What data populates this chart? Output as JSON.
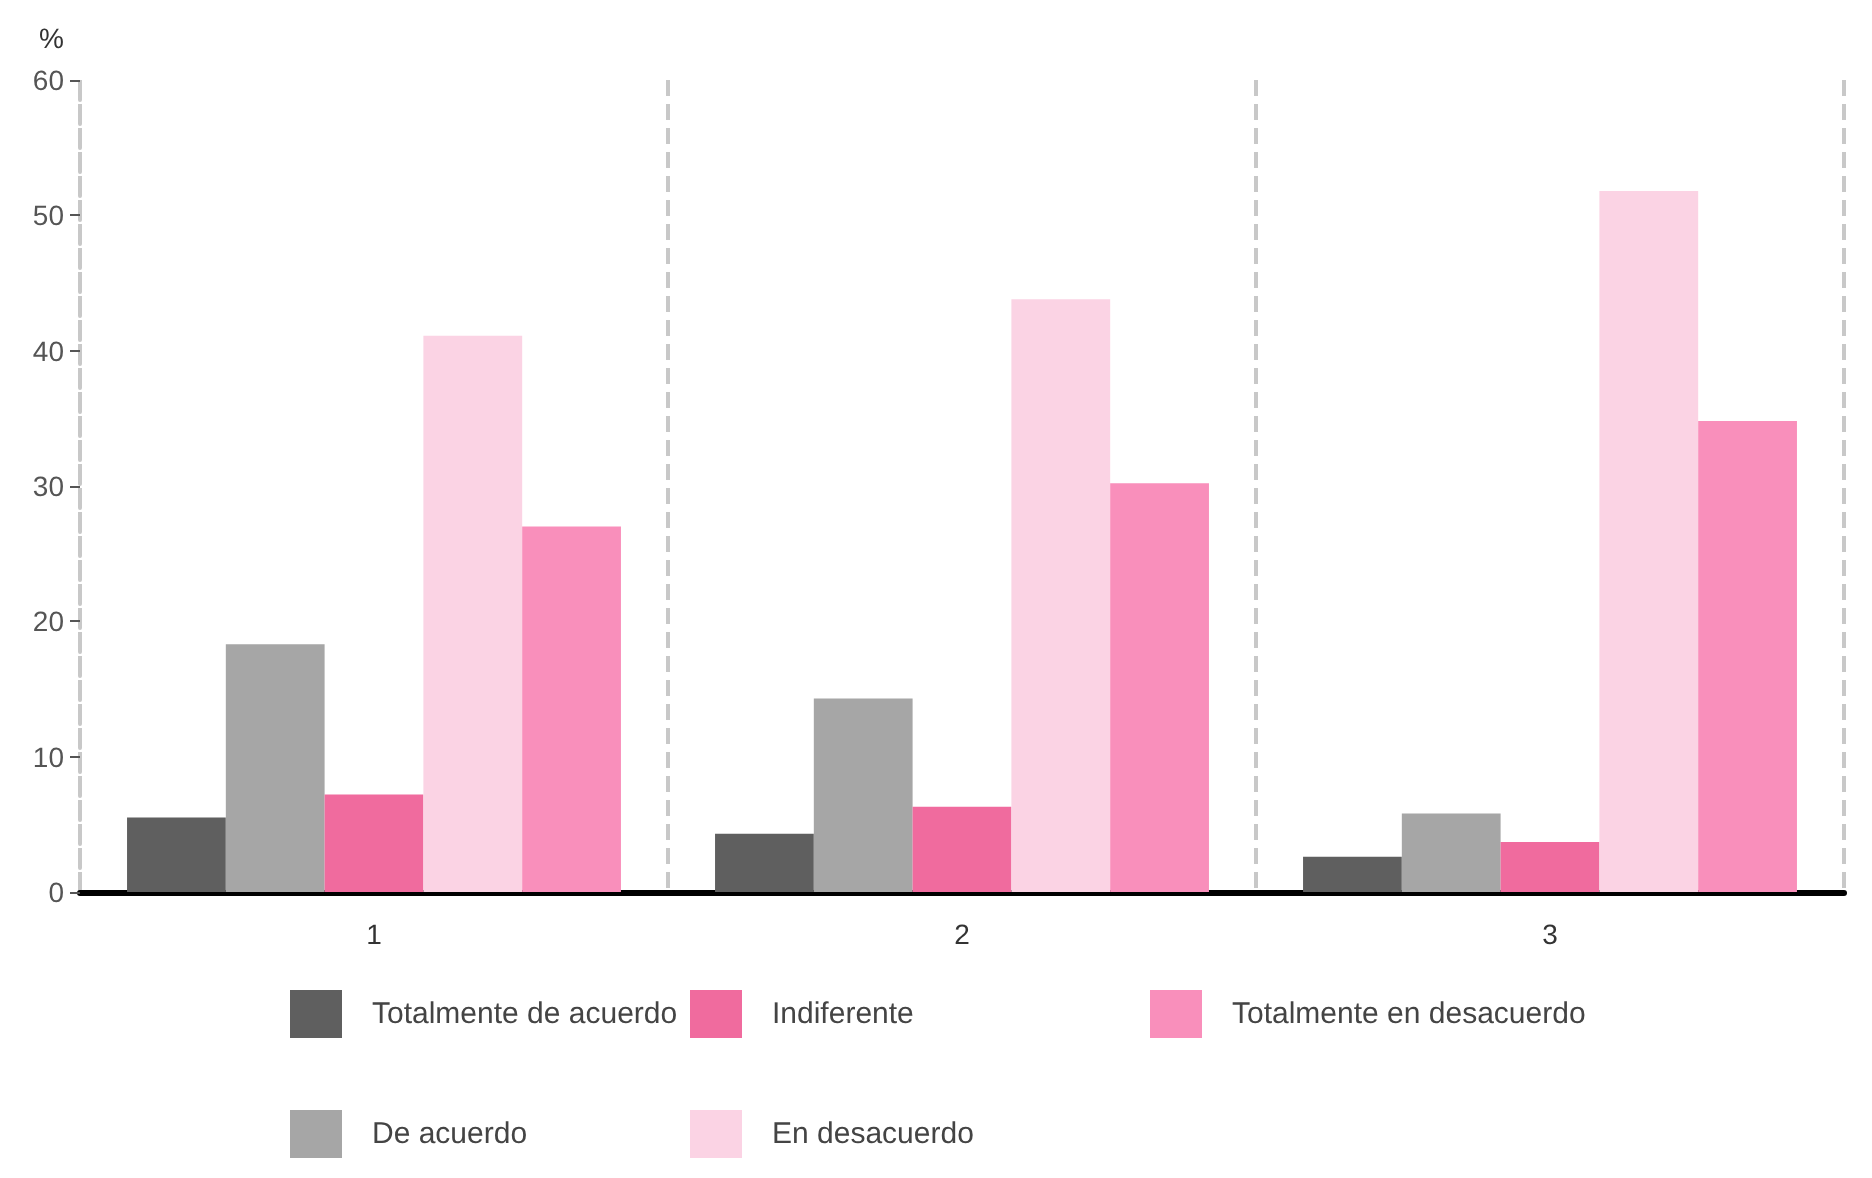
{
  "chart_data": {
    "type": "bar",
    "ylabel": "%",
    "categories": [
      "1",
      "2",
      "3"
    ],
    "series": [
      {
        "name": "Totalmente de acuerdo",
        "color": "#5f5f5f",
        "values": [
          5.5,
          4.3,
          2.6
        ]
      },
      {
        "name": "De acuerdo",
        "color": "#a6a6a6",
        "values": [
          18.3,
          14.3,
          5.8
        ]
      },
      {
        "name": "Indiferente",
        "color": "#f06b9e",
        "values": [
          7.2,
          6.3,
          3.7
        ]
      },
      {
        "name": "En desacuerdo",
        "color": "#fbd3e4",
        "values": [
          41.1,
          43.8,
          51.8
        ]
      },
      {
        "name": "Totalmente en desacuerdo",
        "color": "#f98fbb",
        "values": [
          27.0,
          30.2,
          34.8
        ]
      }
    ],
    "ylim": [
      0,
      60
    ],
    "yticks": [
      0,
      10,
      20,
      30,
      40,
      50,
      60
    ],
    "grid": "x",
    "legend": "bottom"
  }
}
